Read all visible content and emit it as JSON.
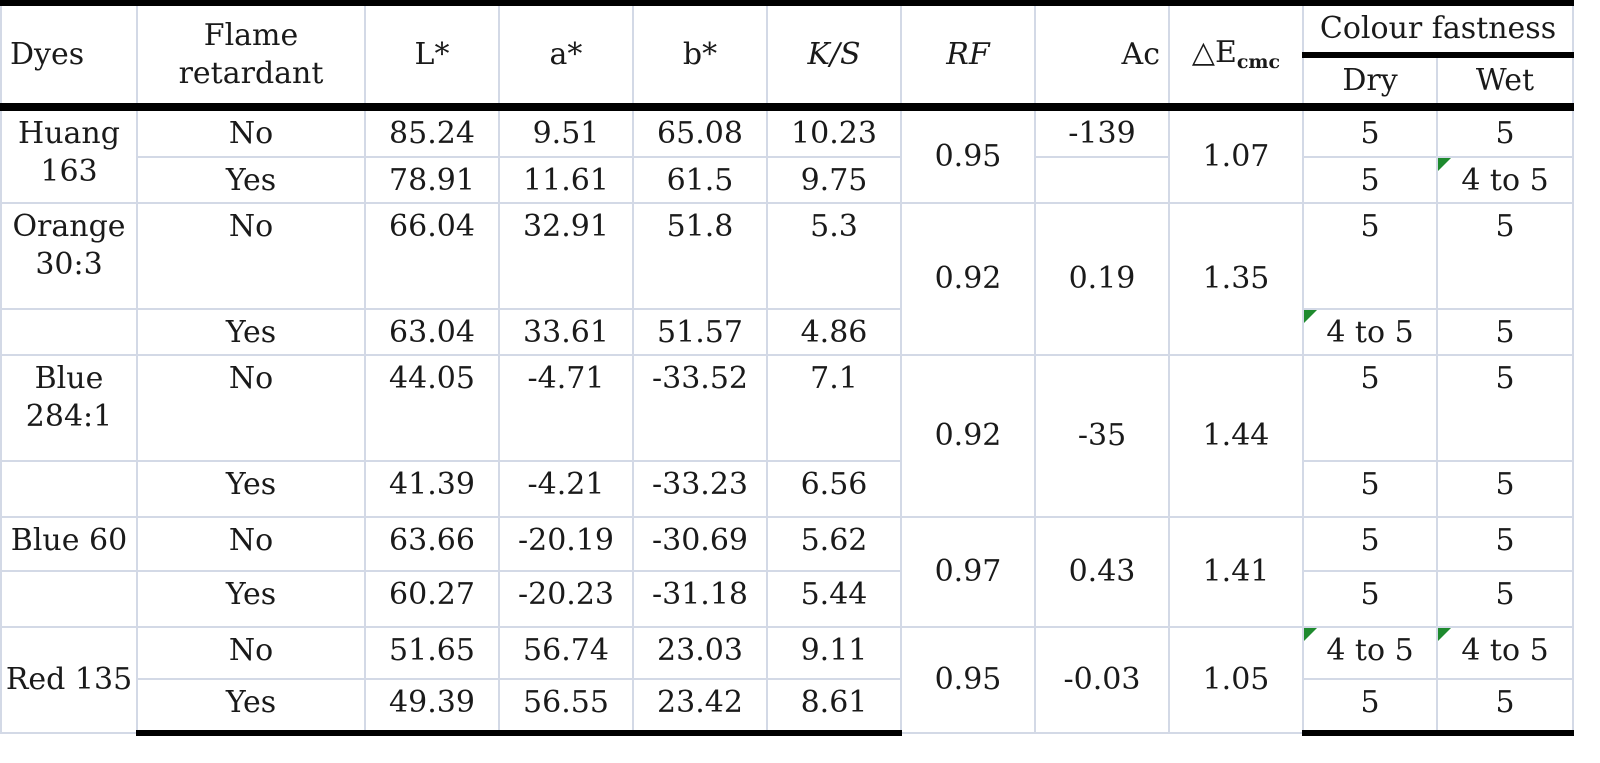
{
  "headers": {
    "dyes": "Dyes",
    "flame_retardant": "Flame retardant",
    "L": "L*",
    "a": "a*",
    "b": "b*",
    "ks": "K/S",
    "rf": "RF",
    "ac": "Ac",
    "delta_e_symbol": "△E",
    "delta_e_sub": "cmc",
    "colour_fastness": "Colour fastness",
    "dry": "Dry",
    "wet": "Wet"
  },
  "rows": [
    {
      "dye": "Huang 163",
      "fr": "No",
      "L": "85.24",
      "a": "9.51",
      "b": "65.08",
      "ks": "10.23",
      "rf": "0.95",
      "ac": "-139",
      "de": "1.07",
      "dry": "5",
      "wet": "5"
    },
    {
      "dye": "",
      "fr": "Yes",
      "L": "78.91",
      "a": "11.61",
      "b": "61.5",
      "ks": "9.75",
      "rf": "",
      "ac": "",
      "de": "",
      "dry": "5",
      "wet": "4 to 5"
    },
    {
      "dye": "Orange 30:3",
      "fr": "No",
      "L": "66.04",
      "a": "32.91",
      "b": "51.8",
      "ks": "5.3",
      "rf": "0.92",
      "ac": "0.19",
      "de": "1.35",
      "dry": "5",
      "wet": "5"
    },
    {
      "dye": "",
      "fr": "Yes",
      "L": "63.04",
      "a": "33.61",
      "b": "51.57",
      "ks": "4.86",
      "rf": "",
      "ac": "",
      "de": "",
      "dry": "4 to 5",
      "wet": "5"
    },
    {
      "dye": "Blue 284:1",
      "fr": "No",
      "L": "44.05",
      "a": "-4.71",
      "b": "-33.52",
      "ks": "7.1",
      "rf": "0.92",
      "ac": "-35",
      "de": "1.44",
      "dry": "5",
      "wet": "5"
    },
    {
      "dye": "",
      "fr": "Yes",
      "L": "41.39",
      "a": "-4.21",
      "b": "-33.23",
      "ks": "6.56",
      "rf": "",
      "ac": "",
      "de": "",
      "dry": "5",
      "wet": "5"
    },
    {
      "dye": "Blue 60",
      "fr": "No",
      "L": "63.66",
      "a": "-20.19",
      "b": "-30.69",
      "ks": "5.62",
      "rf": "0.97",
      "ac": "0.43",
      "de": "1.41",
      "dry": "5",
      "wet": "5"
    },
    {
      "dye": "",
      "fr": "Yes",
      "L": "60.27",
      "a": "-20.23",
      "b": "-31.18",
      "ks": "5.44",
      "rf": "",
      "ac": "",
      "de": "",
      "dry": "5",
      "wet": "5"
    },
    {
      "dye": "Red 135",
      "fr": "No",
      "L": "51.65",
      "a": "56.74",
      "b": "23.03",
      "ks": "9.11",
      "rf": "0.95",
      "ac": "-0.03",
      "de": "1.05",
      "dry": "4 to 5",
      "wet": "4 to 5"
    },
    {
      "dye": "",
      "fr": "Yes",
      "L": "49.39",
      "a": "56.55",
      "b": "23.42",
      "ks": "8.61",
      "rf": "",
      "ac": "",
      "de": "",
      "dry": "5",
      "wet": "5"
    }
  ],
  "colors": {
    "grid": "#d3d9e6",
    "rule": "#000000",
    "note_marker": "#1e8a2e"
  }
}
